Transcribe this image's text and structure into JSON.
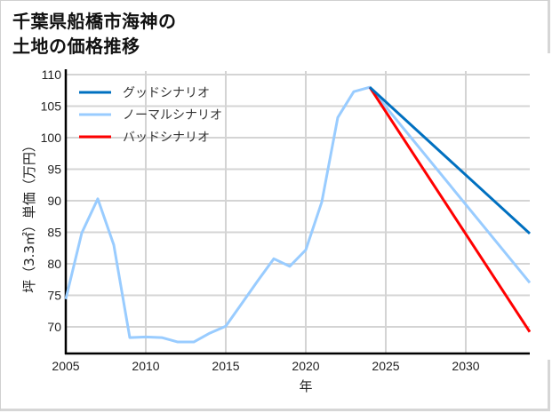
{
  "title": {
    "line1": "千葉県船橋市海神の",
    "line2": "土地の価格推移"
  },
  "chart_data": {
    "type": "line",
    "title": "千葉県船橋市海神の土地の価格推移",
    "xlabel": "年",
    "ylabel": "坪（3.3㎡）単価（万円）",
    "xlim": [
      2005,
      2034
    ],
    "ylim": [
      65.8,
      110
    ],
    "xticks": [
      2005,
      2010,
      2015,
      2020,
      2025,
      2030
    ],
    "yticks": [
      70,
      75,
      80,
      85,
      90,
      95,
      100,
      105,
      110
    ],
    "grid": true,
    "legend_position": "upper left",
    "series": [
      {
        "name": "グッドシナリオ",
        "color": "#0070c0",
        "x": [
          2024,
          2034
        ],
        "y": [
          108.0,
          84.8
        ]
      },
      {
        "name": "ノーマルシナリオ",
        "color": "#99ccff",
        "x": [
          2005,
          2006,
          2007,
          2008,
          2009,
          2010,
          2011,
          2012,
          2013,
          2014,
          2015,
          2016,
          2017,
          2018,
          2019,
          2020,
          2021,
          2022,
          2023,
          2024,
          2034
        ],
        "y": [
          74.4,
          84.9,
          90.3,
          83.0,
          68.3,
          68.4,
          68.3,
          67.6,
          67.6,
          69.0,
          70.1,
          73.7,
          77.3,
          80.8,
          79.6,
          82.2,
          89.8,
          103.2,
          107.3,
          108.0,
          77.0
        ]
      },
      {
        "name": "バッドシナリオ",
        "color": "#ff0000",
        "x": [
          2024,
          2034
        ],
        "y": [
          108.0,
          69.2
        ]
      }
    ]
  }
}
